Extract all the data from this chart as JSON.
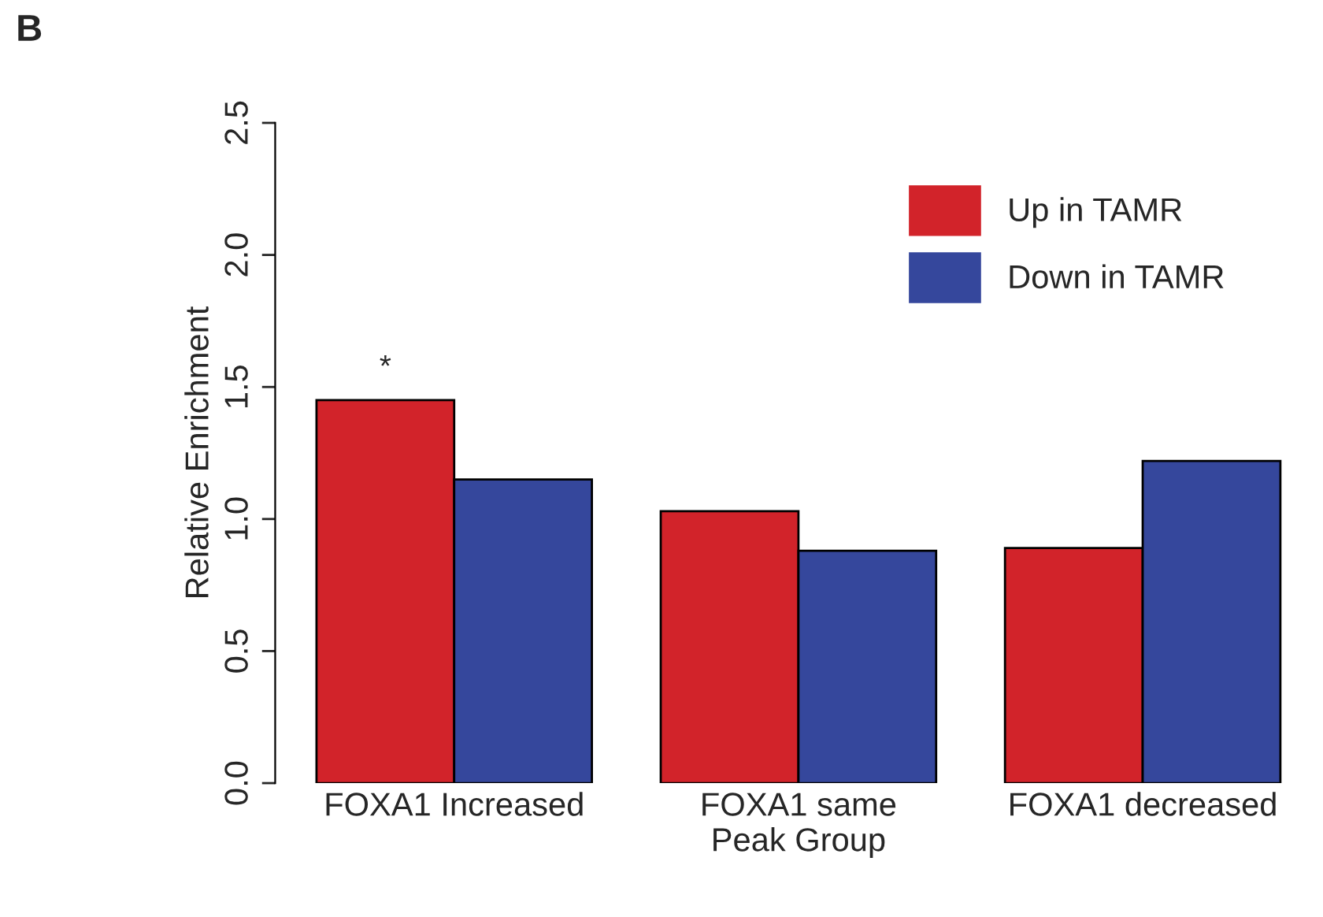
{
  "chart_data": {
    "type": "bar",
    "ylabel": "Relative Enrichment",
    "categories": [
      "FOXA1 Increased",
      "FOXA1 same\nPeak Group",
      "FOXA1 decreased"
    ],
    "series": [
      {
        "name": "Up in TAMR",
        "color": "#d2232a",
        "values": [
          1.45,
          1.03,
          0.89
        ]
      },
      {
        "name": "Down in TAMR",
        "color": "#35479c",
        "values": [
          1.15,
          0.88,
          1.22
        ]
      }
    ],
    "ylim": [
      0,
      2.5
    ],
    "yticks": [
      {
        "value": 0,
        "label": "0.0"
      },
      {
        "value": 0.5,
        "label": "0.5"
      },
      {
        "value": 1.0,
        "label": "1.0"
      },
      {
        "value": 1.5,
        "label": "1.5"
      },
      {
        "value": 2.0,
        "label": "2.0"
      },
      {
        "value": 2.5,
        "label": "2.5"
      }
    ],
    "legend": "top right",
    "grid": false,
    "annotations": [
      "B",
      "*"
    ]
  }
}
